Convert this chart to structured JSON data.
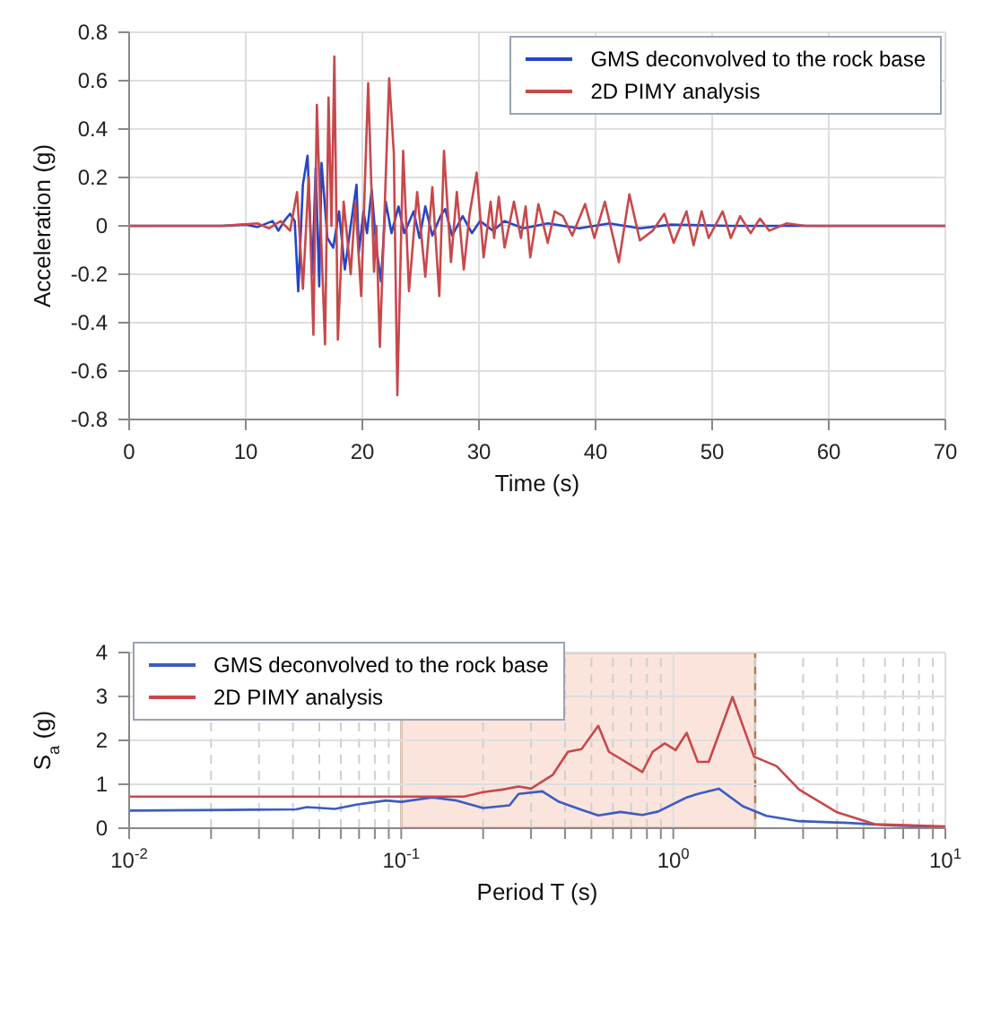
{
  "chart_data": [
    {
      "type": "line",
      "xlabel": "Time (s)",
      "ylabel": "Acceleration (g)",
      "xlim": [
        0,
        70
      ],
      "xticks": [
        0,
        10,
        20,
        30,
        40,
        50,
        60,
        70
      ],
      "ylim": [
        -0.8,
        0.8
      ],
      "yticks": [
        -0.8,
        -0.6,
        -0.4,
        -0.2,
        0,
        0.2,
        0.4,
        0.6,
        0.8
      ],
      "grid": true,
      "legend": "top right",
      "marker": "none",
      "line_style": "solid",
      "series": [
        {
          "name": "GMS deconvolved to the rock base",
          "color": "#2545c8",
          "x": [
            0,
            8,
            10,
            11,
            12.3,
            12.8,
            13.3,
            13.8,
            14.2,
            14.5,
            14.9,
            15.3,
            15.7,
            16.0,
            16.3,
            16.5,
            17.0,
            17.5,
            18.0,
            18.5,
            19.0,
            19.5,
            19.7,
            20.1,
            20.4,
            20.8,
            21.2,
            21.6,
            22.0,
            22.5,
            23.1,
            23.6,
            24.4,
            24.9,
            25.4,
            26.0,
            26.7,
            27.1,
            27.7,
            28.6,
            29.4,
            30.1,
            31.2,
            32.2,
            33.8,
            35.9,
            38.6,
            41.2,
            43.8,
            46.5,
            51.7,
            60,
            70
          ],
          "values": [
            0,
            0,
            0.005,
            -0.005,
            0.02,
            -0.02,
            0.02,
            0.05,
            0.02,
            -0.27,
            0.17,
            0.29,
            -0.2,
            0.24,
            -0.25,
            0.26,
            -0.05,
            -0.09,
            0.06,
            -0.18,
            0,
            0.17,
            -0.11,
            0.06,
            -0.03,
            0.15,
            -0.09,
            -0.23,
            0.1,
            -0.03,
            0.08,
            -0.03,
            0.06,
            -0.05,
            0.08,
            -0.04,
            0.04,
            0.07,
            -0.04,
            0.04,
            -0.03,
            0.02,
            -0.02,
            0.02,
            -0.01,
            0.01,
            -0.01,
            0.01,
            -0.01,
            0.005,
            0,
            0,
            0
          ]
        },
        {
          "name": "2D PIMY analysis",
          "color": "#c8484a",
          "x": [
            0,
            8,
            11,
            12,
            13,
            13.8,
            14.4,
            14.9,
            15.4,
            15.8,
            16.1,
            16.5,
            16.8,
            17.1,
            17.35,
            17.6,
            17.9,
            18.4,
            19.0,
            19.4,
            19.9,
            20.5,
            21.0,
            21.2,
            21.5,
            22.3,
            22.7,
            23.0,
            23.5,
            24.0,
            24.7,
            25.4,
            26.0,
            26.6,
            27.0,
            27.6,
            28.1,
            28.7,
            29.2,
            29.8,
            30.4,
            31.0,
            31.3,
            31.7,
            32.2,
            33.0,
            33.6,
            34.0,
            34.4,
            35.1,
            35.9,
            36.5,
            37.2,
            38.0,
            39.1,
            39.9,
            40.8,
            42.0,
            42.9,
            43.8,
            44.9,
            45.9,
            46.7,
            47.8,
            48.4,
            49.1,
            49.7,
            50.9,
            51.6,
            52.4,
            53.3,
            54.1,
            54.9,
            56.4,
            58,
            70
          ],
          "values": [
            0,
            0,
            0.01,
            -0.01,
            0.02,
            -0.02,
            0.14,
            -0.26,
            0.2,
            -0.45,
            0.5,
            -0.1,
            -0.49,
            0.53,
            0,
            0.7,
            -0.47,
            0.1,
            -0.2,
            0.1,
            -0.29,
            0.59,
            -0.19,
            0,
            -0.5,
            0.61,
            0.3,
            -0.7,
            0.31,
            -0.27,
            0.14,
            -0.21,
            0.16,
            -0.29,
            0.31,
            -0.15,
            0.14,
            -0.18,
            0.05,
            0.22,
            -0.13,
            0.1,
            -0.05,
            0.12,
            -0.09,
            0.1,
            -0.05,
            0.08,
            -0.13,
            0.09,
            -0.07,
            0.06,
            0.04,
            -0.04,
            0.09,
            -0.05,
            0.1,
            -0.15,
            0.13,
            -0.06,
            -0.02,
            0.05,
            -0.07,
            0.06,
            -0.08,
            0.06,
            -0.05,
            0.06,
            -0.05,
            0.04,
            -0.03,
            0.03,
            -0.02,
            0.01,
            0,
            0
          ]
        }
      ]
    },
    {
      "type": "line",
      "xlabel": "Period T (s)",
      "ylabel": "S$_{a}$ (g)",
      "log": "x",
      "xlim": [
        0.01,
        10
      ],
      "xticks": [
        {
          "value": 0.01,
          "label": "10$^{-2}$"
        },
        {
          "value": 0.02,
          "label": null
        },
        {
          "value": 0.03,
          "label": null
        },
        {
          "value": 0.04,
          "label": null
        },
        {
          "value": 0.05,
          "label": null
        },
        {
          "value": 0.06,
          "label": null
        },
        {
          "value": 0.07,
          "label": null
        },
        {
          "value": 0.08,
          "label": null
        },
        {
          "value": 0.09,
          "label": null
        },
        {
          "value": 0.1,
          "label": "10$^{-1}$"
        },
        {
          "value": 0.2,
          "label": null
        },
        {
          "value": 0.3,
          "label": null
        },
        {
          "value": 0.4,
          "label": null
        },
        {
          "value": 0.5,
          "label": null
        },
        {
          "value": 0.6,
          "label": null
        },
        {
          "value": 0.7,
          "label": null
        },
        {
          "value": 0.8,
          "label": null
        },
        {
          "value": 0.9,
          "label": null
        },
        {
          "value": 1,
          "label": "10$^{0}$"
        },
        {
          "value": 2,
          "label": null
        },
        {
          "value": 3,
          "label": null
        },
        {
          "value": 4,
          "label": null
        },
        {
          "value": 5,
          "label": null
        },
        {
          "value": 6,
          "label": null
        },
        {
          "value": 7,
          "label": null
        },
        {
          "value": 8,
          "label": null
        },
        {
          "value": 9,
          "label": null
        },
        {
          "value": 10,
          "label": "10$^{1}$"
        }
      ],
      "ylim": [
        0,
        4
      ],
      "yticks": [
        0,
        1,
        2,
        3,
        4
      ],
      "grid": true,
      "legend": "top left",
      "marker": "none",
      "line_style": "solid",
      "bands": [
        {
          "axis": "x",
          "from": 0.1,
          "to": 2,
          "color": "#fbe4dc"
        }
      ],
      "series": [
        {
          "name": "GMS deconvolved to the rock base",
          "color": "#3b5cc4",
          "x": [
            0.01,
            0.028,
            0.041,
            0.045,
            0.057,
            0.069,
            0.088,
            0.1,
            0.13,
            0.16,
            0.2,
            0.25,
            0.27,
            0.33,
            0.38,
            0.46,
            0.53,
            0.64,
            0.77,
            0.88,
            1.12,
            1.23,
            1.47,
            1.8,
            2.2,
            2.9,
            4.4,
            6.4,
            10
          ],
          "values": [
            0.4,
            0.42,
            0.43,
            0.48,
            0.44,
            0.54,
            0.63,
            0.6,
            0.7,
            0.63,
            0.46,
            0.52,
            0.78,
            0.84,
            0.6,
            0.42,
            0.29,
            0.37,
            0.3,
            0.38,
            0.7,
            0.78,
            0.9,
            0.5,
            0.28,
            0.16,
            0.12,
            0.06,
            0.03
          ]
        },
        {
          "name": "2D PIMY analysis",
          "color": "#c8484a",
          "x": [
            0.01,
            0.17,
            0.2,
            0.236,
            0.27,
            0.3,
            0.36,
            0.41,
            0.46,
            0.53,
            0.58,
            0.77,
            0.84,
            0.93,
            1.02,
            1.12,
            1.23,
            1.35,
            1.65,
            1.98,
            2.4,
            2.9,
            4.0,
            5.5,
            8.9,
            10
          ],
          "values": [
            0.72,
            0.72,
            0.82,
            0.88,
            0.95,
            0.9,
            1.21,
            1.74,
            1.8,
            2.33,
            1.74,
            1.28,
            1.74,
            1.93,
            1.78,
            2.17,
            1.51,
            1.51,
            2.99,
            1.63,
            1.41,
            0.88,
            0.36,
            0.09,
            0.05,
            0.04
          ]
        }
      ]
    }
  ]
}
